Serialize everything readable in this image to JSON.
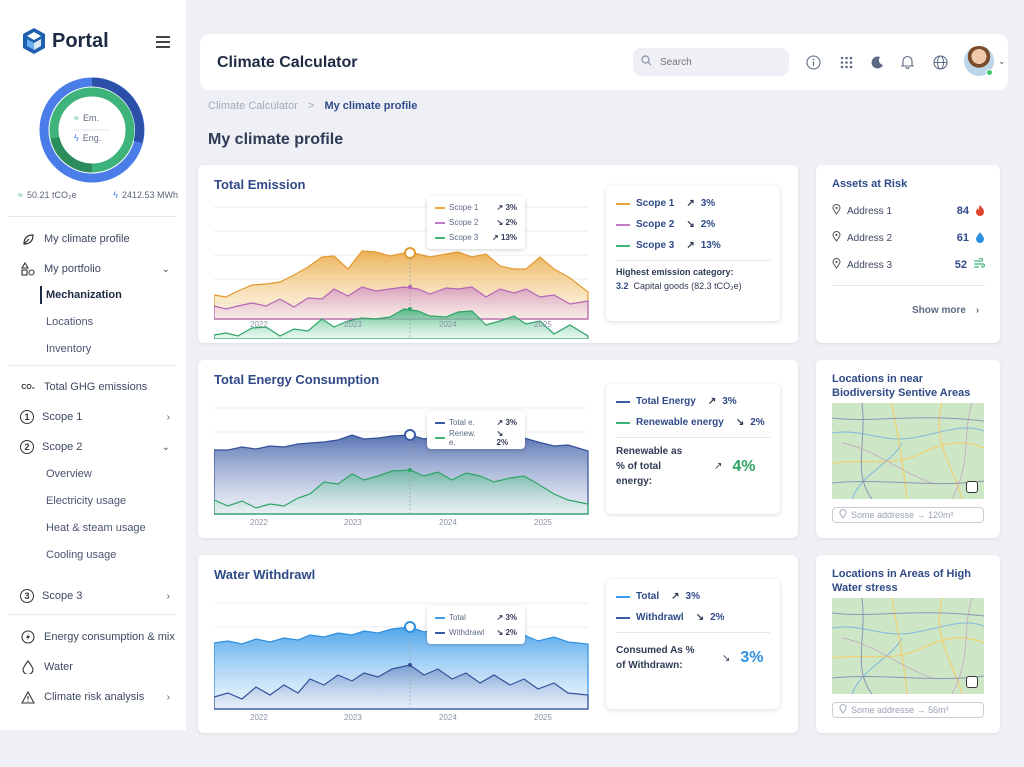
{
  "sidebar": {
    "logo_text": "Portal",
    "donut": {
      "em_label": "Em.",
      "eng_label": "Eng."
    },
    "stats": {
      "emissions": "50.21 tCO₂e",
      "energy": "2412.53 MWh"
    },
    "items": [
      {
        "label": "My climate profile"
      },
      {
        "label": "My portfolio"
      },
      {
        "label": "Total GHG emissions"
      },
      {
        "label": "Scope 1"
      },
      {
        "label": "Scope 2"
      },
      {
        "label": "Scope 3"
      },
      {
        "label": "Energy consumption & mix"
      },
      {
        "label": "Water"
      },
      {
        "label": "Climate risk analysis"
      }
    ],
    "portfolio_sub": [
      "Mechanization",
      "Locations",
      "Inventory"
    ],
    "scope2_sub": [
      "Overview",
      "Electricity usage",
      "Heat & steam usage",
      "Cooling usage"
    ]
  },
  "header": {
    "title": "Climate Calculator",
    "search_placeholder": "Search"
  },
  "breadcrumb": {
    "root": "Climate Calculator",
    "sep": ">",
    "current": "My climate profile"
  },
  "page_title": "My climate profile",
  "emission": {
    "title": "Total Emission",
    "years": [
      "2022",
      "2023",
      "2024",
      "2025"
    ],
    "tooltip": [
      {
        "label": "Scope 1",
        "arrow": "↗",
        "value": "3%"
      },
      {
        "label": "Scope 2",
        "arrow": "↘",
        "value": "2%"
      },
      {
        "label": "Scope 3",
        "arrow": "↗",
        "value": "13%"
      }
    ],
    "legend": [
      {
        "label": "Scope 1",
        "arrow": "↗",
        "value": "3%",
        "color": "#e8a33a"
      },
      {
        "label": "Scope 2",
        "arrow": "↘",
        "value": "2%",
        "color": "#c47bc6"
      },
      {
        "label": "Scope 3",
        "arrow": "↗",
        "value": "13%",
        "color": "#3fb47a"
      }
    ],
    "highest_label": "Highest emission category:",
    "highest_num": "3.2",
    "highest_text": "Capital goods (82.3 tCO₂e)",
    "colors": {
      "s1": "#e8a33a",
      "s2": "#c47bc6",
      "s3": "#3fb47a"
    }
  },
  "energy": {
    "title": "Total Energy Consumption",
    "years": [
      "2022",
      "2023",
      "2024",
      "2025"
    ],
    "tooltip": [
      {
        "label": "Total e.",
        "arrow": "↗",
        "value": "3%"
      },
      {
        "label": "Renew. e.",
        "arrow": "↘",
        "value": "2%"
      }
    ],
    "legend": [
      {
        "label": "Total Energy",
        "arrow": "↗",
        "value": "3%",
        "color": "#3b5ba5"
      },
      {
        "label": "Renewable energy",
        "arrow": "↘",
        "value": "2%",
        "color": "#3fb47a"
      }
    ],
    "ratio_label_1": "Renewable as",
    "ratio_label_2": "% of total",
    "ratio_label_3": "energy:",
    "ratio_arrow": "↗",
    "ratio_value": "4%"
  },
  "water": {
    "title": "Water Withdrawl",
    "years": [
      "2022",
      "2023",
      "2024",
      "2025"
    ],
    "tooltip": [
      {
        "label": "Total",
        "arrow": "↗",
        "value": "3%"
      },
      {
        "label": "Withdrawl",
        "arrow": "↘",
        "value": "2%"
      }
    ],
    "legend": [
      {
        "label": "Total",
        "arrow": "↗",
        "value": "3%",
        "color": "#3a9ae8"
      },
      {
        "label": "Withdrawl",
        "arrow": "↘",
        "value": "2%",
        "color": "#3b5ba5"
      }
    ],
    "ratio_label_1": "Consumed As %",
    "ratio_label_2": "of Withdrawn:",
    "ratio_arrow": "↘",
    "ratio_value": "3%"
  },
  "assets": {
    "title": "Assets at Risk",
    "rows": [
      {
        "label": "Address 1",
        "value": "84",
        "icon": "fire-icon"
      },
      {
        "label": "Address 2",
        "value": "61",
        "icon": "water-drop-icon"
      },
      {
        "label": "Address 3",
        "value": "52",
        "icon": "wind-icon"
      }
    ],
    "show_more": "Show more"
  },
  "biodiversity": {
    "title": "Locations in near Biodiversity Sentive Areas",
    "address": "Some addresse → 120m²"
  },
  "waterstress": {
    "title": "Locations in Areas of High Water stress",
    "address": "Some addresse → 56m³"
  }
}
